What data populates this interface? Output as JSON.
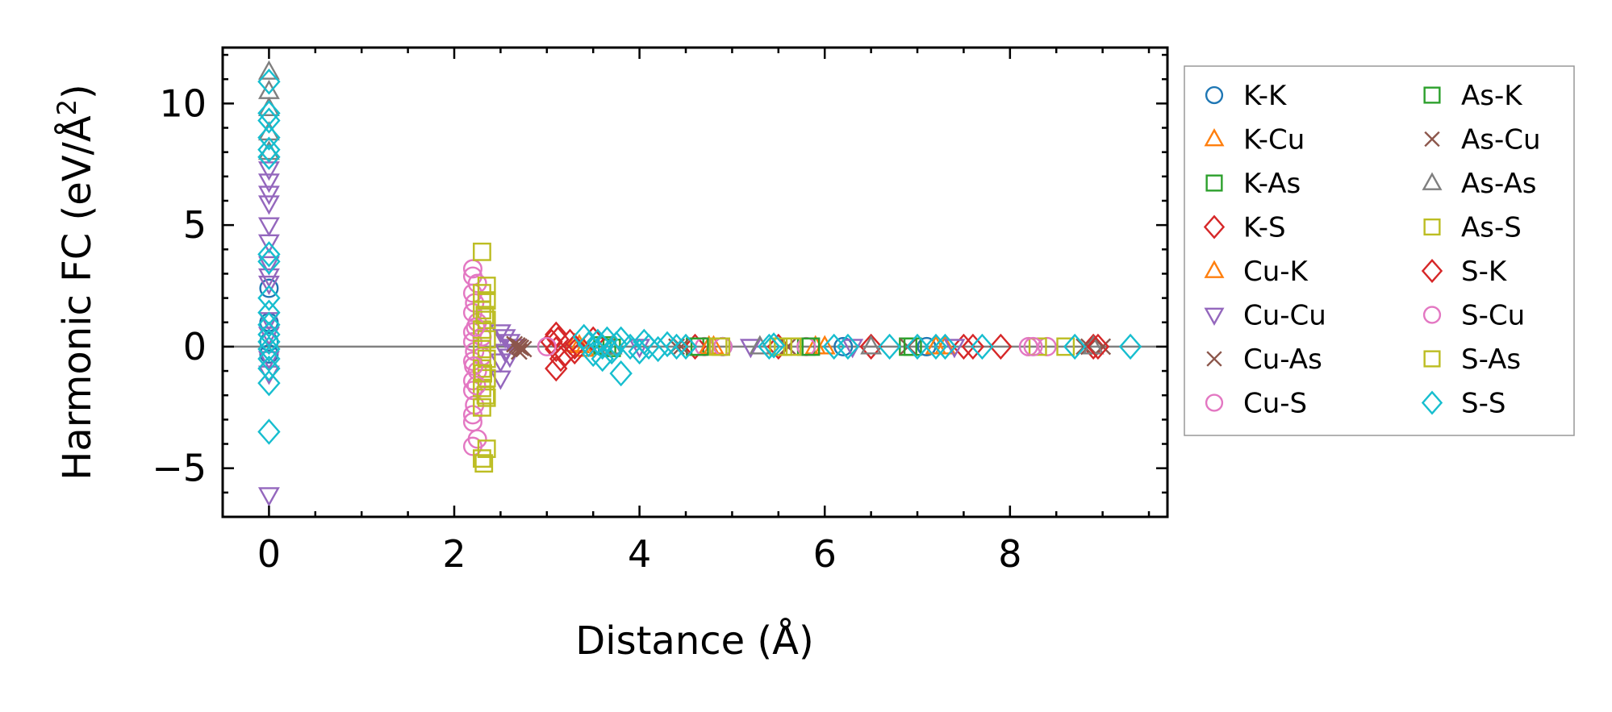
{
  "chart_data": {
    "type": "scatter",
    "title": "",
    "xlabel": "Distance (Å)",
    "ylabel": "Harmonic FC (eV/Å²)",
    "ylabel_main": "Harmonic FC (eV/Å",
    "ylabel_sup": "2",
    "ylabel_close": ")",
    "xlim": [
      -0.5,
      9.7
    ],
    "ylim": [
      -7,
      12.3
    ],
    "xticks": [
      0,
      2,
      4,
      6,
      8
    ],
    "xtick_labels": [
      "0",
      "2",
      "4",
      "6",
      "8"
    ],
    "yticks": [
      -5,
      0,
      5,
      10
    ],
    "ytick_labels": [
      "−5",
      "0",
      "5",
      "10"
    ],
    "x_minor_step": 0.5,
    "y_minor_step": 1,
    "grid": false,
    "reference_line_y": 0,
    "legend_position": "outside-right",
    "series": [
      {
        "name": "K-K",
        "marker": "circle",
        "color": "#1f77b4",
        "points": [
          [
            0,
            2.4
          ],
          [
            0,
            1.0
          ],
          [
            0,
            0.2
          ],
          [
            0,
            -0.3
          ],
          [
            3.6,
            0.0
          ],
          [
            4.9,
            0.0
          ],
          [
            6.2,
            0.0
          ],
          [
            7.1,
            0.0
          ]
        ]
      },
      {
        "name": "K-Cu",
        "marker": "triangle-up",
        "color": "#ff7f0e",
        "points": [
          [
            3.3,
            0.1
          ],
          [
            3.4,
            -0.1
          ],
          [
            4.8,
            0.0
          ],
          [
            5.9,
            0.0
          ],
          [
            7.2,
            0.0
          ]
        ]
      },
      {
        "name": "K-As",
        "marker": "square",
        "color": "#2ca02c",
        "points": [
          [
            3.6,
            0.05
          ],
          [
            3.7,
            -0.05
          ],
          [
            4.6,
            0.0
          ],
          [
            5.8,
            0.0
          ],
          [
            6.9,
            0.0
          ]
        ]
      },
      {
        "name": "K-S",
        "marker": "diamond",
        "color": "#d62728",
        "points": [
          [
            3.1,
            0.5
          ],
          [
            3.05,
            0.2
          ],
          [
            3.1,
            -0.1
          ],
          [
            3.15,
            -0.5
          ],
          [
            3.1,
            -0.9
          ],
          [
            3.25,
            0.2
          ],
          [
            3.3,
            -0.2
          ],
          [
            3.5,
            0.3
          ],
          [
            4.6,
            0.0
          ],
          [
            5.5,
            0.0
          ],
          [
            6.5,
            0.0
          ],
          [
            7.5,
            0.0
          ],
          [
            7.9,
            0.0
          ],
          [
            8.9,
            0.0
          ]
        ]
      },
      {
        "name": "Cu-K",
        "marker": "triangle-up",
        "color": "#ff7f0e",
        "points": [
          [
            3.35,
            0.05
          ],
          [
            4.75,
            0.0
          ],
          [
            6.0,
            0.0
          ],
          [
            7.3,
            0.0
          ]
        ]
      },
      {
        "name": "Cu-Cu",
        "marker": "triangle-down",
        "color": "#9467bd",
        "points": [
          [
            0,
            6.8
          ],
          [
            0,
            7.3
          ],
          [
            0,
            6.3
          ],
          [
            0,
            5.9
          ],
          [
            0,
            5.0
          ],
          [
            0,
            4.3
          ],
          [
            0,
            3.4
          ],
          [
            0,
            2.9
          ],
          [
            0,
            2.6
          ],
          [
            0,
            1.1
          ],
          [
            0,
            0.5
          ],
          [
            0,
            -0.5
          ],
          [
            0,
            -1.1
          ],
          [
            0,
            -6.1
          ],
          [
            2.5,
            0.6
          ],
          [
            2.55,
            0.4
          ],
          [
            2.6,
            0.2
          ],
          [
            2.65,
            0.0
          ],
          [
            2.55,
            -0.2
          ],
          [
            2.6,
            -0.4
          ],
          [
            2.5,
            -0.6
          ],
          [
            2.5,
            -1.3
          ],
          [
            4.0,
            0.0
          ],
          [
            5.2,
            0.0
          ],
          [
            6.3,
            0.0
          ],
          [
            7.4,
            0.0
          ]
        ]
      },
      {
        "name": "Cu-As",
        "marker": "cross",
        "color": "#8c564b",
        "points": [
          [
            2.65,
            0.1
          ],
          [
            2.7,
            0.0
          ],
          [
            2.75,
            -0.1
          ],
          [
            2.7,
            -0.2
          ],
          [
            4.4,
            0.0
          ],
          [
            5.6,
            0.0
          ],
          [
            6.9,
            0.0
          ],
          [
            8.8,
            0.0
          ],
          [
            9.0,
            0.0
          ]
        ]
      },
      {
        "name": "Cu-S",
        "marker": "circle",
        "color": "#e377c2",
        "points": [
          [
            2.2,
            3.2
          ],
          [
            2.2,
            2.9
          ],
          [
            2.25,
            2.6
          ],
          [
            2.2,
            2.2
          ],
          [
            2.22,
            1.8
          ],
          [
            2.2,
            1.4
          ],
          [
            2.25,
            1.0
          ],
          [
            2.2,
            0.6
          ],
          [
            2.2,
            0.2
          ],
          [
            2.22,
            -0.2
          ],
          [
            2.2,
            -0.6
          ],
          [
            2.25,
            -1.0
          ],
          [
            2.2,
            -1.4
          ],
          [
            2.2,
            -1.8
          ],
          [
            2.22,
            -2.4
          ],
          [
            2.2,
            -2.8
          ],
          [
            2.2,
            -3.1
          ],
          [
            2.25,
            -3.8
          ],
          [
            2.2,
            -4.1
          ],
          [
            2.3,
            0.4
          ],
          [
            2.3,
            -0.4
          ],
          [
            4.7,
            0.0
          ],
          [
            5.8,
            0.0
          ],
          [
            8.2,
            0.0
          ],
          [
            8.4,
            0.0
          ]
        ]
      },
      {
        "name": "As-K",
        "marker": "square",
        "color": "#2ca02c",
        "points": [
          [
            3.65,
            0.05
          ],
          [
            4.65,
            0.0
          ],
          [
            5.85,
            0.0
          ],
          [
            6.95,
            0.0
          ]
        ]
      },
      {
        "name": "As-Cu",
        "marker": "cross",
        "color": "#8c564b",
        "points": [
          [
            2.68,
            0.05
          ],
          [
            2.72,
            -0.05
          ],
          [
            4.45,
            0.0
          ],
          [
            8.85,
            0.0
          ]
        ]
      },
      {
        "name": "As-As",
        "marker": "triangle-up",
        "color": "#7f7f7f",
        "points": [
          [
            0,
            11.3
          ],
          [
            0,
            10.5
          ],
          [
            0,
            9.8
          ],
          [
            0,
            8.8
          ],
          [
            0,
            8.0
          ],
          [
            3.7,
            0.0
          ],
          [
            5.3,
            0.0
          ],
          [
            6.5,
            0.0
          ],
          [
            8.9,
            0.0
          ]
        ]
      },
      {
        "name": "As-S",
        "marker": "square",
        "color": "#bcbd22",
        "points": [
          [
            2.3,
            3.9
          ],
          [
            2.35,
            2.5
          ],
          [
            2.3,
            2.2
          ],
          [
            2.35,
            1.9
          ],
          [
            2.3,
            1.5
          ],
          [
            2.35,
            1.1
          ],
          [
            2.3,
            0.7
          ],
          [
            2.35,
            0.3
          ],
          [
            2.3,
            -0.1
          ],
          [
            2.35,
            -0.5
          ],
          [
            2.3,
            -0.9
          ],
          [
            2.35,
            -1.3
          ],
          [
            2.3,
            -1.7
          ],
          [
            2.35,
            -2.1
          ],
          [
            2.3,
            -2.5
          ],
          [
            2.35,
            -4.2
          ],
          [
            2.3,
            -4.6
          ],
          [
            2.32,
            -4.8
          ],
          [
            4.85,
            0.0
          ],
          [
            5.5,
            0.0
          ],
          [
            5.65,
            0.0
          ],
          [
            8.3,
            0.0
          ],
          [
            8.6,
            0.0
          ]
        ]
      },
      {
        "name": "S-K",
        "marker": "diamond",
        "color": "#d62728",
        "points": [
          [
            3.12,
            0.3
          ],
          [
            3.2,
            -0.3
          ],
          [
            3.3,
            0.0
          ],
          [
            7.6,
            0.0
          ],
          [
            8.95,
            0.0
          ]
        ]
      },
      {
        "name": "S-Cu",
        "marker": "circle",
        "color": "#e377c2",
        "points": [
          [
            2.23,
            0.8
          ],
          [
            2.21,
            -0.8
          ],
          [
            2.24,
            -1.6
          ],
          [
            3.0,
            0.0
          ],
          [
            4.9,
            0.0
          ],
          [
            8.25,
            0.0
          ]
        ]
      },
      {
        "name": "S-As",
        "marker": "square",
        "color": "#bcbd22",
        "points": [
          [
            2.33,
            1.3
          ],
          [
            2.31,
            -1.1
          ],
          [
            2.34,
            -2.0
          ],
          [
            4.88,
            0.0
          ],
          [
            5.55,
            0.0
          ]
        ]
      },
      {
        "name": "S-S",
        "marker": "diamond",
        "color": "#17becf",
        "points": [
          [
            0,
            10.9
          ],
          [
            0,
            9.6
          ],
          [
            0,
            9.3
          ],
          [
            0,
            8.6
          ],
          [
            0,
            8.1
          ],
          [
            0,
            7.8
          ],
          [
            0,
            3.8
          ],
          [
            0,
            3.5
          ],
          [
            0,
            2.0
          ],
          [
            0,
            1.4
          ],
          [
            0,
            0.9
          ],
          [
            0,
            0.5
          ],
          [
            0,
            0.2
          ],
          [
            0,
            -0.1
          ],
          [
            0,
            -0.5
          ],
          [
            0,
            -0.9
          ],
          [
            0,
            -1.5
          ],
          [
            0,
            -3.5
          ],
          [
            3.4,
            0.4
          ],
          [
            3.45,
            0.1
          ],
          [
            3.5,
            -0.3
          ],
          [
            3.55,
            0.2
          ],
          [
            3.6,
            0.0
          ],
          [
            3.6,
            -0.5
          ],
          [
            3.65,
            0.3
          ],
          [
            3.7,
            -0.2
          ],
          [
            3.75,
            0.1
          ],
          [
            3.8,
            -1.1
          ],
          [
            3.8,
            0.3
          ],
          [
            3.9,
            0.0
          ],
          [
            4.0,
            -0.2
          ],
          [
            4.05,
            0.2
          ],
          [
            4.1,
            0.0
          ],
          [
            4.2,
            -0.1
          ],
          [
            4.3,
            0.1
          ],
          [
            4.4,
            0.0
          ],
          [
            4.5,
            0.0
          ],
          [
            5.4,
            0.0
          ],
          [
            5.45,
            0.05
          ],
          [
            6.1,
            0.0
          ],
          [
            6.25,
            0.0
          ],
          [
            6.7,
            0.0
          ],
          [
            7.0,
            0.0
          ],
          [
            7.2,
            0.0
          ],
          [
            7.3,
            0.0
          ],
          [
            7.7,
            0.0
          ],
          [
            8.7,
            0.0
          ],
          [
            9.3,
            0.0
          ]
        ]
      }
    ]
  }
}
